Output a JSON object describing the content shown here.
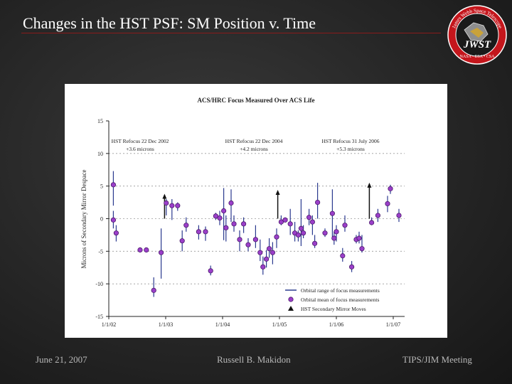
{
  "slide": {
    "title": "Changes in the HST PSF: SM Position v. Time",
    "footer_date": "June 21, 2007",
    "footer_author": "Russell B. Makidon",
    "footer_meeting": "TIPS/JIM Meeting"
  },
  "logo": {
    "top_text": "James Webb Space Telescope",
    "main_text": "JWST",
    "bottom_text": "NASA • ESA • CSA",
    "colors": {
      "ring": "#c4161c",
      "inner": "#1a1a1a",
      "text": "#ffffff"
    }
  },
  "chart_data": {
    "type": "scatter",
    "title": "ACS/HRC Focus Measured Over ACS Life",
    "ylabel": "Microns of Secondary Mirror Despace",
    "xlabel": "",
    "ylim": [
      -15,
      15
    ],
    "xlim": [
      2002.0,
      2007.2
    ],
    "yticks": [
      15,
      10,
      5,
      0,
      -5,
      -10,
      -15
    ],
    "xticks": [
      {
        "value": 2002.0,
        "label": "1/1/02"
      },
      {
        "value": 2003.0,
        "label": "1/1/03"
      },
      {
        "value": 2004.0,
        "label": "1/1/04"
      },
      {
        "value": 2005.0,
        "label": "1/1/05"
      },
      {
        "value": 2006.0,
        "label": "1/1/06"
      },
      {
        "value": 2007.0,
        "label": "1/1/07"
      }
    ],
    "grid_y": [
      10,
      5,
      0,
      -5,
      -10
    ],
    "refocus_annotations": [
      {
        "line1": "HST Refocus 22 Dec 2002",
        "line2": "+3.6 microns",
        "x": 2002.98
      },
      {
        "line1": "HST Refocus 22 Dec 2004",
        "line2": "+4.2 microns",
        "x": 2004.97
      },
      {
        "line1": "HST Refocus 31 July 2006",
        "line2": "+5.3 microns",
        "x": 2006.58
      }
    ],
    "legend": [
      {
        "label": "Orbital range of focus measurements",
        "symbol": "line"
      },
      {
        "label": "Orbital mean of focus measurements",
        "symbol": "circle"
      },
      {
        "label": "HST Secondary Mirror Moves",
        "symbol": "triangle"
      }
    ],
    "sm_moves": [
      {
        "x": 2002.98,
        "from": 0.0,
        "to": 3.6
      },
      {
        "x": 2004.97,
        "from": 0.0,
        "to": 4.2
      },
      {
        "x": 2006.58,
        "from": 0.0,
        "to": 5.3
      }
    ],
    "points": [
      {
        "x": 2002.08,
        "mean": 5.2,
        "low": 2.0,
        "high": 7.3
      },
      {
        "x": 2002.08,
        "mean": -0.2,
        "low": -1.5,
        "high": 1.2
      },
      {
        "x": 2002.13,
        "mean": -2.2,
        "low": -3.5,
        "high": -1.0
      },
      {
        "x": 2002.55,
        "mean": -4.8,
        "low": -5.0,
        "high": -4.6
      },
      {
        "x": 2002.66,
        "mean": -4.8,
        "low": -5.0,
        "high": -4.6
      },
      {
        "x": 2002.79,
        "mean": -11.0,
        "low": -12.0,
        "high": -9.0
      },
      {
        "x": 2002.92,
        "mean": -5.2,
        "low": -9.2,
        "high": -1.5
      },
      {
        "x": 2003.01,
        "mean": 2.4,
        "low": 0.5,
        "high": 3.0
      },
      {
        "x": 2003.11,
        "mean": 2.0,
        "low": -0.2,
        "high": 3.0
      },
      {
        "x": 2003.21,
        "mean": 2.0,
        "low": 1.2,
        "high": 2.5
      },
      {
        "x": 2003.29,
        "mean": -3.4,
        "low": -5.0,
        "high": -1.8
      },
      {
        "x": 2003.36,
        "mean": -1.0,
        "low": -2.0,
        "high": 0.2
      },
      {
        "x": 2003.58,
        "mean": -2.0,
        "low": -3.2,
        "high": -1.0
      },
      {
        "x": 2003.7,
        "mean": -2.0,
        "low": -3.4,
        "high": -1.2
      },
      {
        "x": 2003.79,
        "mean": -8.0,
        "low": -8.7,
        "high": -7.2
      },
      {
        "x": 2003.88,
        "mean": 0.4,
        "low": -0.2,
        "high": 0.9
      },
      {
        "x": 2003.95,
        "mean": 0.1,
        "low": -1.0,
        "high": 1.2
      },
      {
        "x": 2004.02,
        "mean": 1.2,
        "low": -3.3,
        "high": 4.7
      },
      {
        "x": 2004.06,
        "mean": -1.4,
        "low": -3.5,
        "high": 0.5
      },
      {
        "x": 2004.15,
        "mean": 2.4,
        "low": -0.5,
        "high": 4.5
      },
      {
        "x": 2004.2,
        "mean": -0.8,
        "low": -2.0,
        "high": 0.5
      },
      {
        "x": 2004.3,
        "mean": -3.2,
        "low": -5.0,
        "high": -1.8
      },
      {
        "x": 2004.37,
        "mean": -0.8,
        "low": -2.2,
        "high": 0.2
      },
      {
        "x": 2004.45,
        "mean": -4.0,
        "low": -5.0,
        "high": -3.0
      },
      {
        "x": 2004.58,
        "mean": -3.2,
        "low": -4.5,
        "high": -1.0
      },
      {
        "x": 2004.66,
        "mean": -5.2,
        "low": -6.5,
        "high": -3.2
      },
      {
        "x": 2004.71,
        "mean": -7.4,
        "low": -8.6,
        "high": -5.8
      },
      {
        "x": 2004.77,
        "mean": -6.2,
        "low": -7.5,
        "high": -4.8
      },
      {
        "x": 2004.82,
        "mean": -4.6,
        "low": -6.0,
        "high": -3.0
      },
      {
        "x": 2004.88,
        "mean": -5.2,
        "low": -7.0,
        "high": -3.6
      },
      {
        "x": 2004.95,
        "mean": -2.8,
        "low": -4.5,
        "high": -1.5
      },
      {
        "x": 2005.03,
        "mean": -0.5,
        "low": -1.0,
        "high": 0.5
      },
      {
        "x": 2005.1,
        "mean": -0.2,
        "low": -0.6,
        "high": 0.2
      },
      {
        "x": 2005.19,
        "mean": -0.8,
        "low": -2.5,
        "high": 1.5
      },
      {
        "x": 2005.27,
        "mean": -2.2,
        "low": -3.5,
        "high": -0.5
      },
      {
        "x": 2005.33,
        "mean": -2.5,
        "low": -3.5,
        "high": -1.8
      },
      {
        "x": 2005.38,
        "mean": -1.5,
        "low": -4.2,
        "high": 3.0
      },
      {
        "x": 2005.42,
        "mean": -2.2,
        "low": -3.0,
        "high": -1.0
      },
      {
        "x": 2005.52,
        "mean": 0.2,
        "low": -1.0,
        "high": 1.5
      },
      {
        "x": 2005.58,
        "mean": -0.5,
        "low": -2.5,
        "high": 0.5
      },
      {
        "x": 2005.62,
        "mean": -3.8,
        "low": -4.5,
        "high": -2.5
      },
      {
        "x": 2005.67,
        "mean": 2.5,
        "low": 0.0,
        "high": 5.5
      },
      {
        "x": 2005.8,
        "mean": -2.2,
        "low": -2.8,
        "high": -1.5
      },
      {
        "x": 2005.93,
        "mean": 0.8,
        "low": -3.0,
        "high": 4.5
      },
      {
        "x": 2005.96,
        "mean": -3.0,
        "low": -4.0,
        "high": -2.0
      },
      {
        "x": 2006.0,
        "mean": -2.0,
        "low": -3.5,
        "high": -1.0
      },
      {
        "x": 2006.11,
        "mean": -5.7,
        "low": -6.6,
        "high": -4.5
      },
      {
        "x": 2006.15,
        "mean": -1.0,
        "low": -2.0,
        "high": 0.5
      },
      {
        "x": 2006.27,
        "mean": -7.4,
        "low": -8.2,
        "high": -6.5
      },
      {
        "x": 2006.35,
        "mean": -3.2,
        "low": -3.8,
        "high": -2.5
      },
      {
        "x": 2006.4,
        "mean": -3.0,
        "low": -3.8,
        "high": -2.0
      },
      {
        "x": 2006.45,
        "mean": -4.6,
        "low": -5.2,
        "high": -2.5
      },
      {
        "x": 2006.62,
        "mean": -0.6,
        "low": -1.0,
        "high": 0.2
      },
      {
        "x": 2006.73,
        "mean": 0.5,
        "low": -0.5,
        "high": 1.5
      },
      {
        "x": 2006.9,
        "mean": 2.3,
        "low": 1.0,
        "high": 3.5
      },
      {
        "x": 2006.95,
        "mean": 4.6,
        "low": 3.8,
        "high": 5.2
      },
      {
        "x": 2007.1,
        "mean": 0.5,
        "low": -0.5,
        "high": 1.5
      }
    ]
  }
}
